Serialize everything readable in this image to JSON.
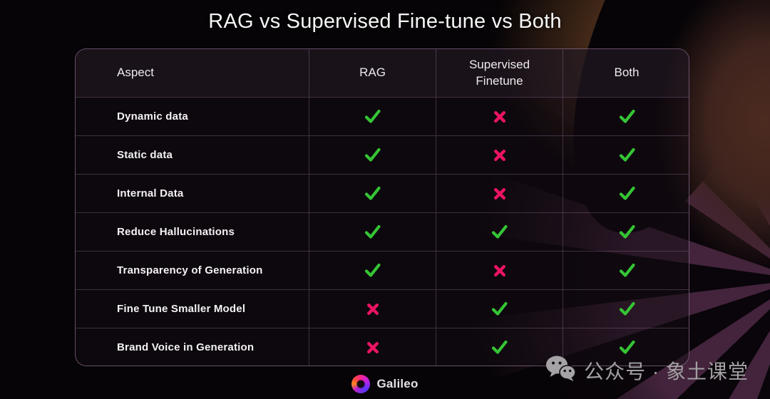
{
  "page": {
    "title": "RAG vs Supervised Fine-tune vs Both"
  },
  "table": {
    "columns": [
      "Aspect",
      "RAG",
      "Supervised\nFinetune",
      "Both"
    ],
    "rows": [
      {
        "aspect": "Dynamic data",
        "marks": [
          "check",
          "cross",
          "check"
        ]
      },
      {
        "aspect": "Static data",
        "marks": [
          "check",
          "cross",
          "check"
        ]
      },
      {
        "aspect": "Internal Data",
        "marks": [
          "check",
          "cross",
          "check"
        ]
      },
      {
        "aspect": "Reduce Hallucinations",
        "marks": [
          "check",
          "check",
          "check"
        ]
      },
      {
        "aspect": "Transparency of Generation",
        "marks": [
          "check",
          "cross",
          "check"
        ]
      },
      {
        "aspect": "Fine Tune Smaller Model",
        "marks": [
          "cross",
          "check",
          "check"
        ]
      },
      {
        "aspect": "Brand Voice in Generation",
        "marks": [
          "cross",
          "check",
          "check"
        ]
      }
    ]
  },
  "footer": {
    "logo_text": "Galileo",
    "watermark": "公众号 · 象土课堂"
  },
  "icons": {
    "check": "✓",
    "cross": "✗",
    "logo": "galileo-swirl-icon",
    "watermark": "wechat-icon"
  },
  "colors": {
    "check": "#35c535",
    "cross": "#ec1464",
    "table_border": "#b288b6",
    "background": "#060406"
  }
}
